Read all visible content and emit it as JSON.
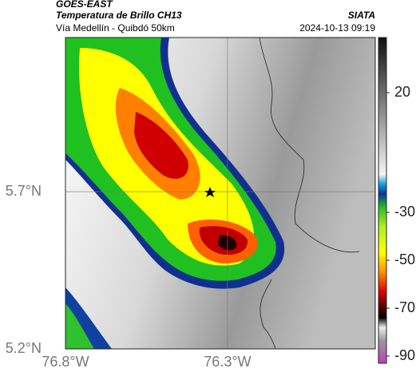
{
  "chart_data": {
    "type": "map",
    "supertitle": "GOES-EAST",
    "title": "Temperatura de Brillo CH13",
    "subtitle": "Vía Medellín - Quibdó 50km",
    "source": "SIATA",
    "datetime": "2024-10-13 09:19",
    "xlim": [
      -76.8,
      -75.844
    ],
    "ylim": [
      5.2,
      6.19
    ],
    "xticks": [
      {
        "value": -76.8,
        "label": "76.8°W"
      },
      {
        "value": -76.3,
        "label": "76.3°W"
      }
    ],
    "yticks": [
      {
        "value": 5.2,
        "label": "5.2°N"
      },
      {
        "value": 5.7,
        "label": "5.7°N"
      }
    ],
    "grid": true,
    "colorbar": {
      "clim": [
        -93,
        43
      ],
      "ticks": [
        20,
        -30,
        -50,
        -70,
        -90
      ]
    }
  }
}
